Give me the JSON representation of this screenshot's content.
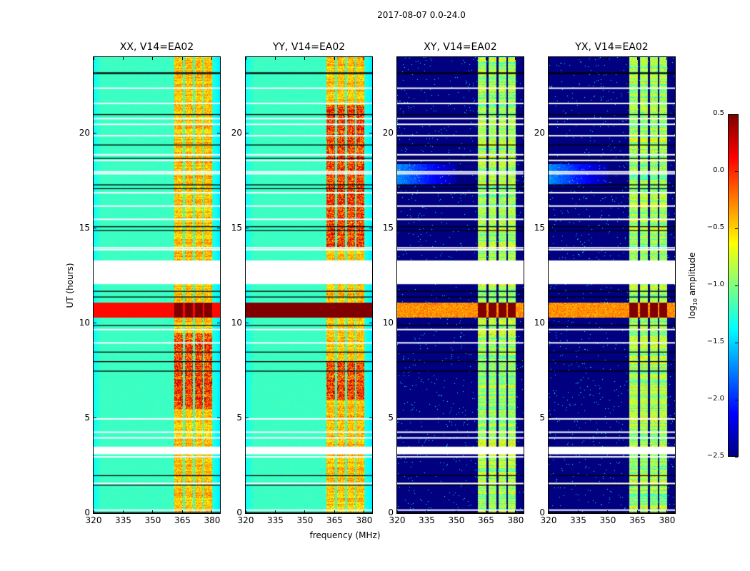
{
  "chart_data": {
    "type": "heatmap",
    "title": "2017-08-07 0.0-24.0",
    "xlabel": "frequency (MHz)",
    "ylabel": "UT (hours)",
    "xlim": [
      320,
      384
    ],
    "ylim": [
      0,
      24
    ],
    "xticks": [
      320,
      335,
      350,
      365,
      380
    ],
    "yticks": [
      0,
      5,
      10,
      15,
      20
    ],
    "panels": [
      {
        "title": "XX, V14=EA02",
        "baseline": -1.2,
        "band_level": -0.6
      },
      {
        "title": "YY, V14=EA02",
        "baseline": -1.2,
        "band_level": -0.6
      },
      {
        "title": "XY, V14=EA02",
        "baseline": -2.5,
        "band_level": -1.2
      },
      {
        "title": "YX, V14=EA02",
        "baseline": -2.5,
        "band_level": -1.2
      }
    ],
    "rfi_bands_mhz": [
      [
        360.5,
        365
      ],
      [
        366,
        370
      ],
      [
        371,
        375
      ],
      [
        376,
        380
      ]
    ],
    "burst_hours": [
      10.3,
      11.1
    ],
    "flagged_hours": [
      [
        12.05,
        13.3
      ],
      [
        3.1,
        3.5
      ]
    ],
    "colorbar": {
      "label": "log",
      "label_sub": "10",
      "label_suffix": " amplitude",
      "colormap": "jet",
      "range": [
        -2.5,
        0.5
      ],
      "ticks": [
        "0.5",
        "0.0",
        "−0.5",
        "−1.0",
        "−1.5",
        "−2.0",
        "−2.5"
      ]
    }
  }
}
